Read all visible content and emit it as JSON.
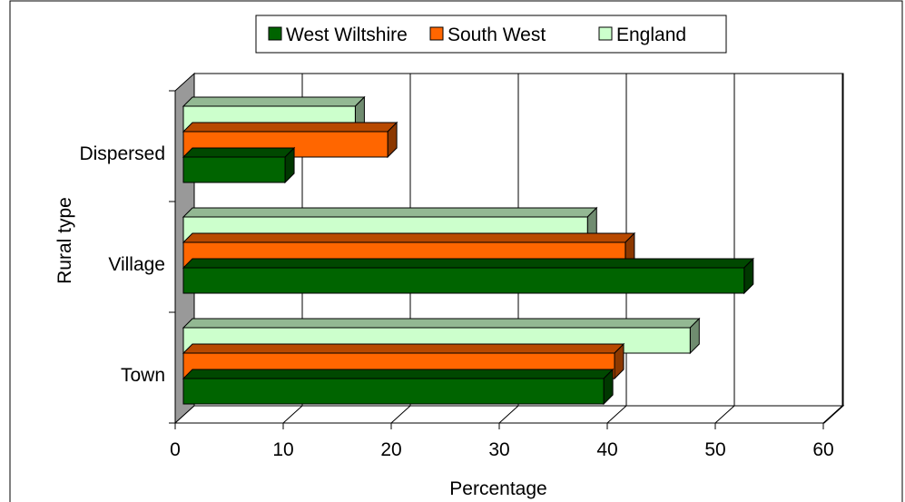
{
  "chart_data": {
    "type": "bar",
    "orientation": "horizontal",
    "style": "3d",
    "categories": [
      "Dispersed",
      "Village",
      "Town"
    ],
    "series": [
      {
        "name": "West Wiltshire",
        "color": "#006400",
        "values": [
          9.5,
          52,
          39
        ]
      },
      {
        "name": "South West",
        "color": "#FF6600",
        "values": [
          19,
          41,
          40
        ]
      },
      {
        "name": "England",
        "color": "#CCFFCC",
        "values": [
          16,
          37.5,
          47
        ]
      }
    ],
    "xlabel": "Percentage",
    "ylabel": "Rural type",
    "xlim": [
      0,
      60
    ],
    "xticks": [
      "0",
      "10",
      "20",
      "30",
      "40",
      "50",
      "60"
    ],
    "grid": "vertical",
    "legend": "top"
  }
}
